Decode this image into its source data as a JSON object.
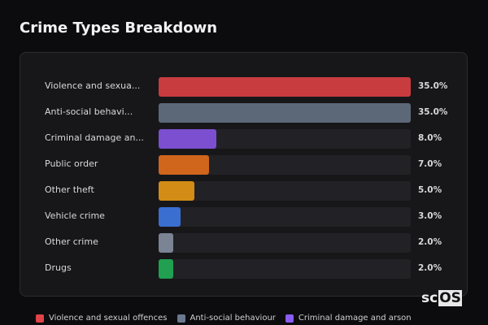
{
  "chart_data": {
    "type": "bar",
    "title": "Crime Types Breakdown",
    "categories": [
      "Violence and sexua...",
      "Anti-social behavi...",
      "Criminal damage an...",
      "Public order",
      "Other theft",
      "Vehicle crime",
      "Other crime",
      "Drugs"
    ],
    "values": [
      35.0,
      35.0,
      8.0,
      7.0,
      5.0,
      3.0,
      2.0,
      2.0
    ],
    "value_labels": [
      "35.0%",
      "35.0%",
      "8.0%",
      "7.0%",
      "5.0%",
      "3.0%",
      "2.0%",
      "2.0%"
    ],
    "colors": [
      "#c83c3f",
      "#5c6878",
      "#7b4fd0",
      "#d0651c",
      "#d38c15",
      "#3a6fd0",
      "#7a8494",
      "#20a050"
    ],
    "xlim": [
      0,
      35
    ],
    "legend": [
      {
        "label": "Violence and sexual offences",
        "color": "#e04448"
      },
      {
        "label": "Anti-social behaviour",
        "color": "#6b7890"
      },
      {
        "label": "Criminal damage and arson",
        "color": "#8a5cf0"
      }
    ],
    "legend_placement": "bottom"
  },
  "logo": {
    "prefix": "sc",
    "boxed": "OS"
  }
}
